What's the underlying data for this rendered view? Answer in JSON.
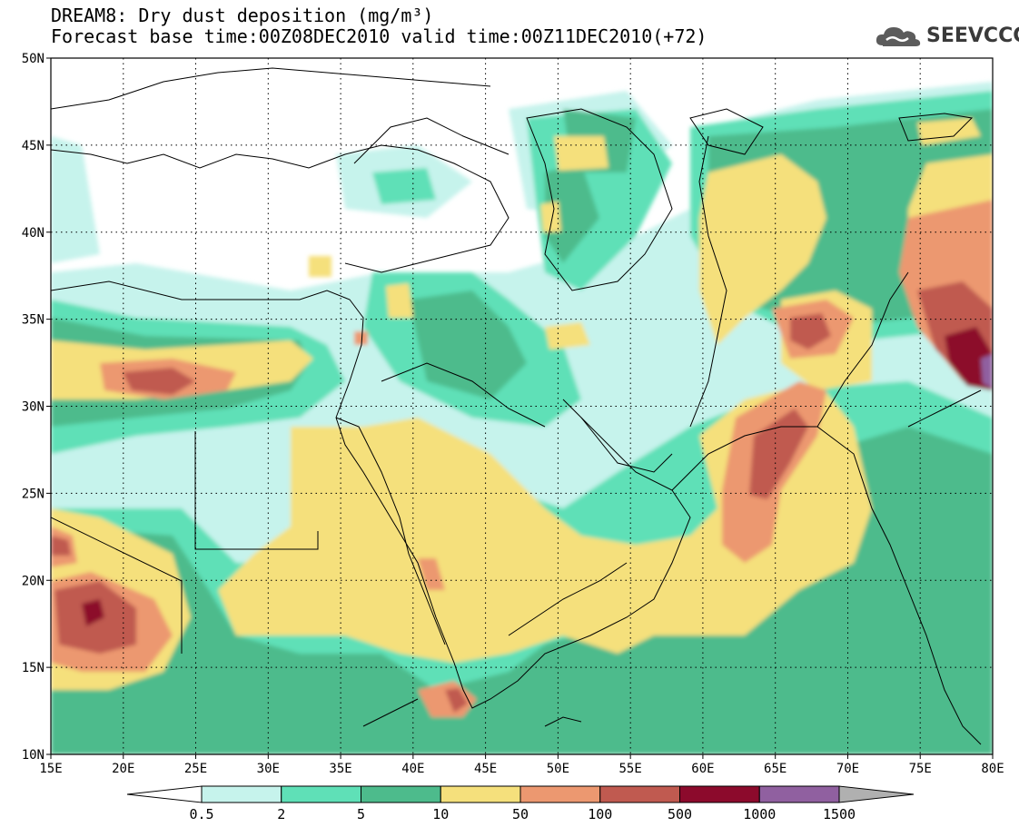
{
  "title": {
    "line1": "DREAM8: Dry dust deposition (mg/m³)",
    "line2": "Forecast base time:00Z08DEC2010 valid time:00Z11DEC2010(+72)"
  },
  "logo": {
    "text": "SEEVCCC",
    "icon": "cloud-logo-icon"
  },
  "map": {
    "lon_range": [
      15,
      80
    ],
    "lat_range": [
      10,
      50
    ],
    "x_ticks": [
      "15E",
      "20E",
      "25E",
      "30E",
      "35E",
      "40E",
      "45E",
      "50E",
      "55E",
      "60E",
      "65E",
      "70E",
      "75E",
      "80E"
    ],
    "y_ticks": [
      "10N",
      "15N",
      "20N",
      "25N",
      "30N",
      "35N",
      "40N",
      "45N",
      "50N"
    ],
    "grid": "dotted"
  },
  "colorbar": {
    "labels": [
      "0.5",
      "2",
      "5",
      "10",
      "50",
      "100",
      "500",
      "1000",
      "1500"
    ],
    "colors": [
      "#ffffff",
      "#c6f3ec",
      "#5fe0b7",
      "#4dbb8c",
      "#f5e07c",
      "#ec9870",
      "#c05a50",
      "#8c0a2c",
      "#9060a0",
      "#b0b0b0"
    ]
  }
}
